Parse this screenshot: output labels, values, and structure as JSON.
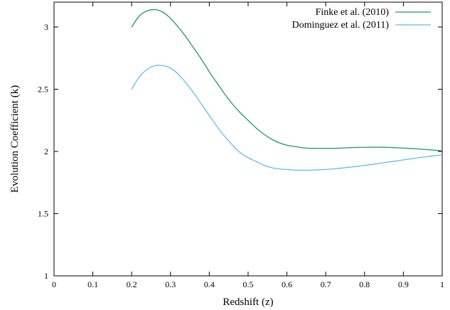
{
  "chart_data": {
    "type": "line",
    "title": "",
    "xlabel": "Redshift (z)",
    "ylabel": "Evolution Coefficient (k)",
    "xlim": [
      0,
      1
    ],
    "ylim": [
      1,
      3.2
    ],
    "xticks": [
      0,
      0.1,
      0.2,
      0.3,
      0.4,
      0.5,
      0.6,
      0.7,
      0.8,
      0.9,
      1
    ],
    "xtick_labels": [
      "0",
      "0.1",
      "0.2",
      "0.3",
      "0.4",
      "0.5",
      "0.6",
      "0.7",
      "0.8",
      "0.9",
      "1"
    ],
    "yticks": [
      1,
      1.5,
      2,
      2.5,
      3
    ],
    "ytick_labels": [
      "1",
      "1.5",
      "2",
      "2.5",
      "3"
    ],
    "grid": false,
    "legend_position": "top-right",
    "series": [
      {
        "name": "Finke et al. (2010)",
        "color": "#1a9a6c",
        "x": [
          0.2,
          0.22,
          0.24,
          0.26,
          0.28,
          0.3,
          0.32,
          0.34,
          0.36,
          0.38,
          0.4,
          0.42,
          0.44,
          0.46,
          0.48,
          0.5,
          0.52,
          0.54,
          0.56,
          0.58,
          0.6,
          0.62,
          0.64,
          0.66,
          0.68,
          0.7,
          0.72,
          0.74,
          0.76,
          0.78,
          0.8,
          0.82,
          0.84,
          0.86,
          0.88,
          0.9,
          0.92,
          0.94,
          0.96,
          0.98,
          1.0
        ],
        "y": [
          3.0,
          3.09,
          3.13,
          3.14,
          3.12,
          3.07,
          3.0,
          2.92,
          2.83,
          2.74,
          2.64,
          2.55,
          2.46,
          2.38,
          2.31,
          2.25,
          2.19,
          2.14,
          2.1,
          2.07,
          2.05,
          2.04,
          2.03,
          2.025,
          2.025,
          2.025,
          2.025,
          2.027,
          2.03,
          2.032,
          2.033,
          2.034,
          2.034,
          2.033,
          2.03,
          2.027,
          2.024,
          2.02,
          2.015,
          2.01,
          2.005
        ]
      },
      {
        "name": "Dominguez et al. (2011)",
        "color": "#5bbfe8",
        "x": [
          0.2,
          0.22,
          0.24,
          0.26,
          0.28,
          0.3,
          0.32,
          0.34,
          0.36,
          0.38,
          0.4,
          0.42,
          0.44,
          0.46,
          0.48,
          0.5,
          0.52,
          0.54,
          0.56,
          0.58,
          0.6,
          0.62,
          0.64,
          0.66,
          0.68,
          0.7,
          0.72,
          0.74,
          0.76,
          0.78,
          0.8,
          0.82,
          0.84,
          0.86,
          0.88,
          0.9,
          0.92,
          0.94,
          0.96,
          0.98,
          1.0
        ],
        "y": [
          2.5,
          2.6,
          2.66,
          2.69,
          2.69,
          2.67,
          2.62,
          2.55,
          2.47,
          2.38,
          2.29,
          2.2,
          2.12,
          2.05,
          1.99,
          1.95,
          1.92,
          1.89,
          1.87,
          1.86,
          1.855,
          1.85,
          1.849,
          1.85,
          1.852,
          1.855,
          1.86,
          1.866,
          1.873,
          1.88,
          1.888,
          1.896,
          1.905,
          1.914,
          1.923,
          1.932,
          1.941,
          1.95,
          1.958,
          1.966,
          1.973
        ]
      }
    ]
  }
}
